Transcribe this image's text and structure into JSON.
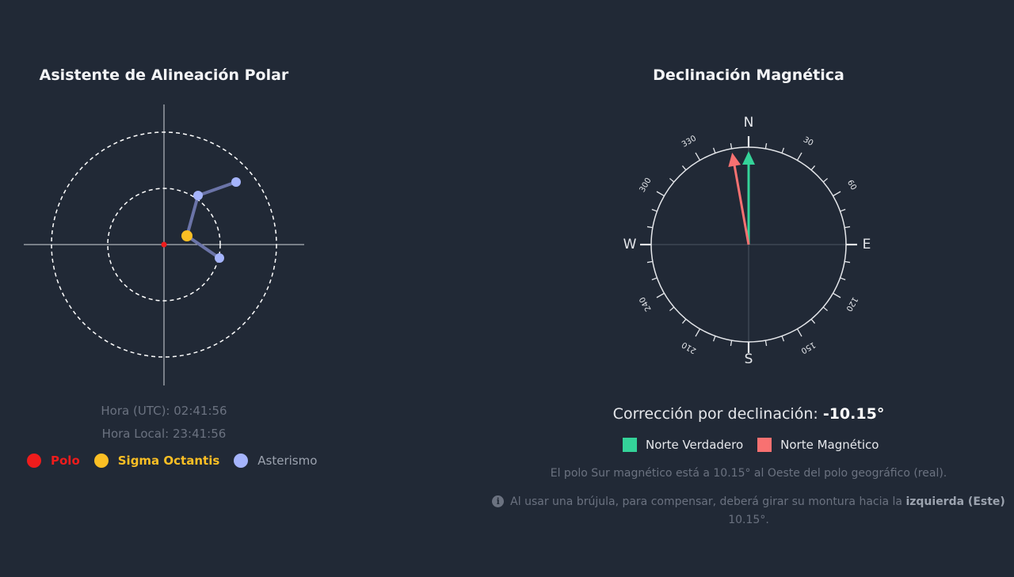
{
  "polar_panel": {
    "title": "Asistente de Alineación Polar",
    "time_utc": "Hora (UTC): 02:41:56",
    "time_local": "Hora Local: 23:41:56",
    "legend": [
      {
        "label": "Polo",
        "color": "#ef1c1c"
      },
      {
        "label": "Sigma Octantis",
        "color": "#fbbf24"
      },
      {
        "label": "Asterismo",
        "color": "#a5b4fc"
      }
    ]
  },
  "declination_panel": {
    "title": "Declinación Magnética",
    "cardinals": {
      "north": "N",
      "south": "S",
      "east": "E",
      "west": "W"
    },
    "degree_labels": [
      "30",
      "60",
      "120",
      "150",
      "210",
      "240",
      "300",
      "330"
    ],
    "correction_label": "Corrección por declinación:",
    "correction_value": "-10.15°",
    "declination_degrees": -10.15,
    "legend": [
      {
        "label": "Norte Verdadero",
        "color": "#34d399"
      },
      {
        "label": "Norte Magnético",
        "color": "#f87171"
      }
    ],
    "note_1": "El polo Sur magnético está a 10.15° al Oeste del polo geográfico (real).",
    "note_2_prefix": "Al usar una brújula, para compensar, deberá girar su montura hacia la",
    "note_2_bold": "izquierda (Este)",
    "note_2_suffix": "10.15°.",
    "info_icon": "info-circle-icon"
  }
}
